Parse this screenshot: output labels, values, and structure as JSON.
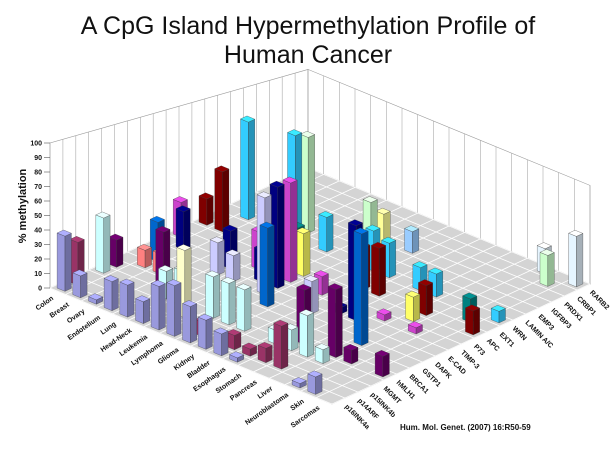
{
  "chart_data": {
    "type": "bar3d",
    "title": "A CpG Island Hypermethylation Profile of Human Cancer",
    "ylabel": "% methylation",
    "ylim": [
      0,
      100
    ],
    "yticks": [
      0,
      10,
      20,
      30,
      40,
      50,
      60,
      70,
      80,
      90,
      100
    ],
    "grid": true,
    "cancers": [
      "Colon",
      "Breast",
      "Ovary",
      "Endotelium",
      "Lung",
      "Head-Neck",
      "Leukemia",
      "Lymphoma",
      "Glioma",
      "Kidney",
      "Bladder",
      "Esophagus",
      "Stomach",
      "Pancreas",
      "Liver",
      "Neuroblastoma",
      "Skin",
      "Sarcomas"
    ],
    "genes": [
      "p16INK4a",
      "p14ARF",
      "p15INK4b",
      "MGMT",
      "hMLH1",
      "BRCA1",
      "GSTP1",
      "DAPK",
      "E-CAD",
      "TIMP-3",
      "P73",
      "APC",
      "EXT1",
      "WRN",
      "LAMIN A/C",
      "EMP3",
      "IGFBP3",
      "PRDX1",
      "CRBP1",
      "RARB2"
    ],
    "gene_colors": [
      "#9999dd",
      "#993366",
      "#ffffcc",
      "#ccffff",
      "#660066",
      "#ff8080",
      "#0066cc",
      "#ccccff",
      "#000080",
      "#cc44cc",
      "#ffff66",
      "#800000",
      "#008080",
      "#33ccff",
      "#ccffcc",
      "#ffff99",
      "#99ccff",
      "#cc99ff",
      "#ccffcc",
      "#e6f5ff"
    ],
    "bars": [
      {
        "cancer": "Colon",
        "gene": "p16INK4a",
        "value": 38
      },
      {
        "cancer": "Colon",
        "gene": "p14ARF",
        "value": 30
      },
      {
        "cancer": "Colon",
        "gene": "MGMT",
        "value": 40
      },
      {
        "cancer": "Colon",
        "gene": "hMLH1",
        "value": 20
      },
      {
        "cancer": "Colon",
        "gene": "APC",
        "value": 22
      },
      {
        "cancer": "Colon",
        "gene": "TIMP-3",
        "value": 28
      },
      {
        "cancer": "Breast",
        "gene": "p16INK4a",
        "value": 15
      },
      {
        "cancer": "Breast",
        "gene": "BRCA1",
        "value": 13
      },
      {
        "cancer": "Breast",
        "gene": "GSTP1",
        "value": 30
      },
      {
        "cancer": "Breast",
        "gene": "E-CAD",
        "value": 30
      },
      {
        "cancer": "Breast",
        "gene": "APC",
        "value": 50
      },
      {
        "cancer": "Breast",
        "gene": "WRN",
        "value": 85
      },
      {
        "cancer": "Ovary",
        "gene": "p16INK4a",
        "value": 3
      },
      {
        "cancer": "Ovary",
        "gene": "BRCA1",
        "value": 15
      },
      {
        "cancer": "Endotelium",
        "gene": "p16INK4a",
        "value": 20
      },
      {
        "cancer": "Endotelium",
        "gene": "hMLH1",
        "value": 40
      },
      {
        "cancer": "Lung",
        "gene": "p16INK4a",
        "value": 22
      },
      {
        "cancer": "Lung",
        "gene": "MGMT",
        "value": 20
      },
      {
        "cancer": "Lung",
        "gene": "DAPK",
        "value": 25
      },
      {
        "cancer": "Lung",
        "gene": "E-CAD",
        "value": 30
      },
      {
        "cancer": "Lung",
        "gene": "APC",
        "value": 40
      },
      {
        "cancer": "Lung",
        "gene": "WRN",
        "value": 90
      },
      {
        "cancer": "Lung",
        "gene": "LAMIN A/C",
        "value": 85
      },
      {
        "cancer": "Head-Neck",
        "gene": "p16INK4a",
        "value": 15
      },
      {
        "cancer": "Head-Neck",
        "gene": "MGMT",
        "value": 25
      },
      {
        "cancer": "Head-Neck",
        "gene": "DAPK",
        "value": 20
      },
      {
        "cancer": "Head-Neck",
        "gene": "TIMP-3",
        "value": 30
      },
      {
        "cancer": "Head-Neck",
        "gene": "EXT1",
        "value": 20
      },
      {
        "cancer": "Leukemia",
        "gene": "p16INK4a",
        "value": 30
      },
      {
        "cancer": "Leukemia",
        "gene": "p15INK4b",
        "value": 48
      },
      {
        "cancer": "Leukemia",
        "gene": "E-CAD",
        "value": 25
      },
      {
        "cancer": "Leukemia",
        "gene": "P73",
        "value": 35
      },
      {
        "cancer": "Leukemia",
        "gene": "WRN",
        "value": 30
      },
      {
        "cancer": "Lymphoma",
        "gene": "p16INK4a",
        "value": 35
      },
      {
        "cancer": "Lymphoma",
        "gene": "MGMT",
        "value": 30
      },
      {
        "cancer": "Lymphoma",
        "gene": "DAPK",
        "value": 75
      },
      {
        "cancer": "Lymphoma",
        "gene": "TIMP-3",
        "value": 80
      },
      {
        "cancer": "Lymphoma",
        "gene": "E-CAD",
        "value": 80
      },
      {
        "cancer": "Lymphoma",
        "gene": "P73",
        "value": 35
      },
      {
        "cancer": "Glioma",
        "gene": "p16INK4a",
        "value": 25
      },
      {
        "cancer": "Glioma",
        "gene": "p14ARF",
        "value": 10
      },
      {
        "cancer": "Glioma",
        "gene": "MGMT",
        "value": 30
      },
      {
        "cancer": "Glioma",
        "gene": "GSTP1",
        "value": 60
      },
      {
        "cancer": "Glioma",
        "gene": "EMP3",
        "value": 35
      },
      {
        "cancer": "Glioma",
        "gene": "LAMIN A/C",
        "value": 50
      },
      {
        "cancer": "Kidney",
        "gene": "p16INK4a",
        "value": 20
      },
      {
        "cancer": "Kidney",
        "gene": "MGMT",
        "value": 30
      },
      {
        "cancer": "Kidney",
        "gene": "TIMP-3",
        "value": 15
      },
      {
        "cancer": "Kidney",
        "gene": "WRN",
        "value": 35
      },
      {
        "cancer": "Kidney",
        "gene": "IGFBP3",
        "value": 20
      },
      {
        "cancer": "Bladder",
        "gene": "p16INK4a",
        "value": 15
      },
      {
        "cancer": "Bladder",
        "gene": "p14ARF",
        "value": 10
      },
      {
        "cancer": "Bladder",
        "gene": "DAPK",
        "value": 25
      },
      {
        "cancer": "Bladder",
        "gene": "APC",
        "value": 35
      },
      {
        "cancer": "Bladder",
        "gene": "WRN",
        "value": 30
      },
      {
        "cancer": "Esophagus",
        "gene": "p16INK4a",
        "value": 3
      },
      {
        "cancer": "Esophagus",
        "gene": "p14ARF",
        "value": 5
      },
      {
        "cancer": "Esophagus",
        "gene": "MGMT",
        "value": 10
      },
      {
        "cancer": "Esophagus",
        "gene": "APC",
        "value": 40
      },
      {
        "cancer": "Esophagus",
        "gene": "E-CAD",
        "value": 5
      },
      {
        "cancer": "Stomach",
        "gene": "p14ARF",
        "value": 10
      },
      {
        "cancer": "Stomach",
        "gene": "MGMT",
        "value": 15
      },
      {
        "cancer": "Stomach",
        "gene": "hMLH1",
        "value": 40
      },
      {
        "cancer": "Stomach",
        "gene": "E-CAD",
        "value": 75
      },
      {
        "cancer": "Stomach",
        "gene": "WRN",
        "value": 20
      },
      {
        "cancer": "Pancreas",
        "gene": "p14ARF",
        "value": 30
      },
      {
        "cancer": "Pancreas",
        "gene": "MGMT",
        "value": 30
      },
      {
        "cancer": "Pancreas",
        "gene": "TIMP-3",
        "value": 5
      },
      {
        "cancer": "Pancreas",
        "gene": "WRN",
        "value": 20
      },
      {
        "cancer": "Liver",
        "gene": "MGMT",
        "value": 10
      },
      {
        "cancer": "Liver",
        "gene": "hMLH1",
        "value": 50
      },
      {
        "cancer": "Liver",
        "gene": "GSTP1",
        "value": 85
      },
      {
        "cancer": "Liver",
        "gene": "P73",
        "value": 20
      },
      {
        "cancer": "Liver",
        "gene": "APC",
        "value": 25
      },
      {
        "cancer": "Neuroblastoma",
        "gene": "p16INK4a",
        "value": 3
      },
      {
        "cancer": "Neuroblastoma",
        "gene": "TIMP-3",
        "value": 5
      },
      {
        "cancer": "Neuroblastoma",
        "gene": "hMLH1",
        "value": 10
      },
      {
        "cancer": "Neuroblastoma",
        "gene": "RARB2",
        "value": 25
      },
      {
        "cancer": "Skin",
        "gene": "p16INK4a",
        "value": 12
      },
      {
        "cancer": "Skin",
        "gene": "EXT1",
        "value": 20
      },
      {
        "cancer": "Skin",
        "gene": "CRBP1",
        "value": 30
      },
      {
        "cancer": "Sarcomas",
        "gene": "hMLH1",
        "value": 15
      },
      {
        "cancer": "Sarcomas",
        "gene": "APC",
        "value": 20
      },
      {
        "cancer": "Sarcomas",
        "gene": "WRN",
        "value": 10
      },
      {
        "cancer": "Sarcomas",
        "gene": "RARB2",
        "value": 50
      }
    ]
  },
  "citation": "Hum. Mol. Genet. (2007) 16:R50-59"
}
